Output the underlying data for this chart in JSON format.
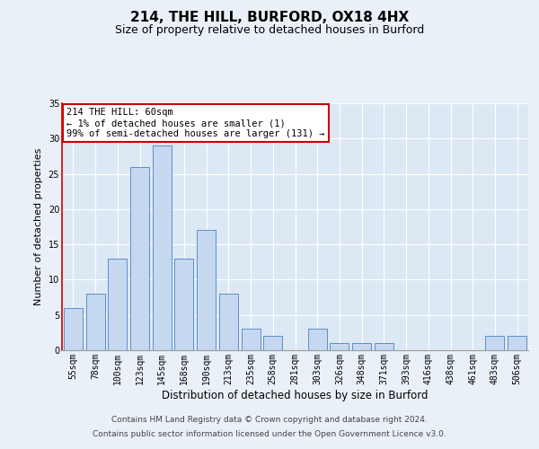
{
  "title1": "214, THE HILL, BURFORD, OX18 4HX",
  "title2": "Size of property relative to detached houses in Burford",
  "xlabel": "Distribution of detached houses by size in Burford",
  "ylabel": "Number of detached properties",
  "categories": [
    "55sqm",
    "78sqm",
    "100sqm",
    "123sqm",
    "145sqm",
    "168sqm",
    "190sqm",
    "213sqm",
    "235sqm",
    "258sqm",
    "281sqm",
    "303sqm",
    "326sqm",
    "348sqm",
    "371sqm",
    "393sqm",
    "416sqm",
    "438sqm",
    "461sqm",
    "483sqm",
    "506sqm"
  ],
  "values": [
    6,
    8,
    13,
    26,
    29,
    13,
    17,
    8,
    3,
    2,
    0,
    3,
    1,
    1,
    1,
    0,
    0,
    0,
    0,
    2,
    2
  ],
  "bar_color": "#c5d8f0",
  "bar_edge_color": "#5b8fc9",
  "annotation_text": "214 THE HILL: 60sqm\n← 1% of detached houses are smaller (1)\n99% of semi-detached houses are larger (131) →",
  "annotation_box_color": "#ffffff",
  "annotation_box_edge": "#cc0000",
  "ylim": [
    0,
    35
  ],
  "yticks": [
    0,
    5,
    10,
    15,
    20,
    25,
    30,
    35
  ],
  "fig_bg_color": "#eaf0f8",
  "plot_bg_color": "#dde8f5",
  "grid_color": "#ffffff",
  "footer1": "Contains HM Land Registry data © Crown copyright and database right 2024.",
  "footer2": "Contains public sector information licensed under the Open Government Licence v3.0.",
  "title1_fontsize": 11,
  "title2_fontsize": 9,
  "tick_fontsize": 7,
  "ylabel_fontsize": 8,
  "xlabel_fontsize": 8.5,
  "footer_fontsize": 6.5,
  "annot_fontsize": 7.5
}
